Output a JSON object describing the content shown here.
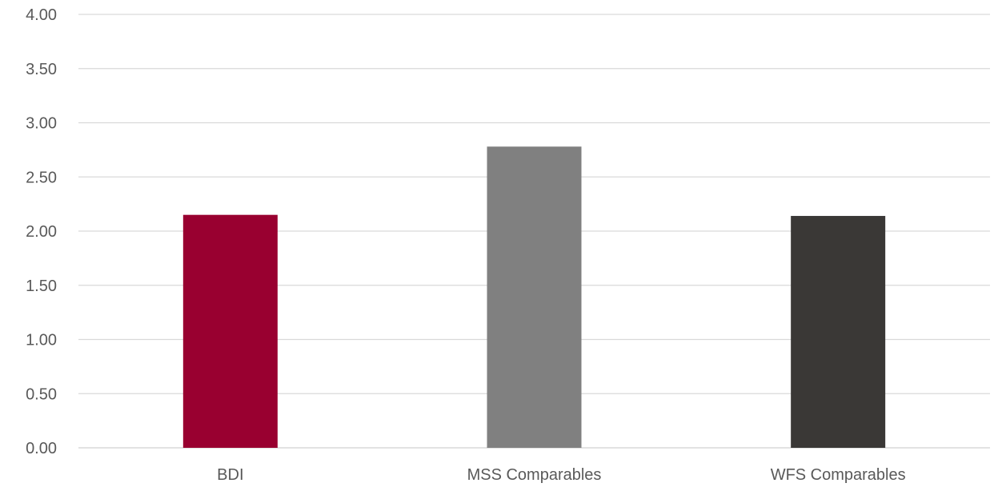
{
  "chart_data": {
    "type": "bar",
    "categories": [
      "BDI",
      "MSS Comparables",
      "WFS Comparables"
    ],
    "values": [
      2.15,
      2.78,
      2.14
    ],
    "bar_colors": [
      "#990030",
      "#808080",
      "#3a3836"
    ],
    "ylim": [
      0,
      4
    ],
    "yticks": [
      "0.00",
      "0.50",
      "1.00",
      "1.50",
      "2.00",
      "2.50",
      "3.00",
      "3.50",
      "4.00"
    ],
    "ytick_values": [
      0,
      0.5,
      1,
      1.5,
      2,
      2.5,
      3,
      3.5,
      4
    ],
    "grid": true,
    "gridline_color": "#d9d9d9",
    "axis_line_color": "#d9d9d9",
    "title": "",
    "xlabel": "",
    "ylabel": ""
  }
}
